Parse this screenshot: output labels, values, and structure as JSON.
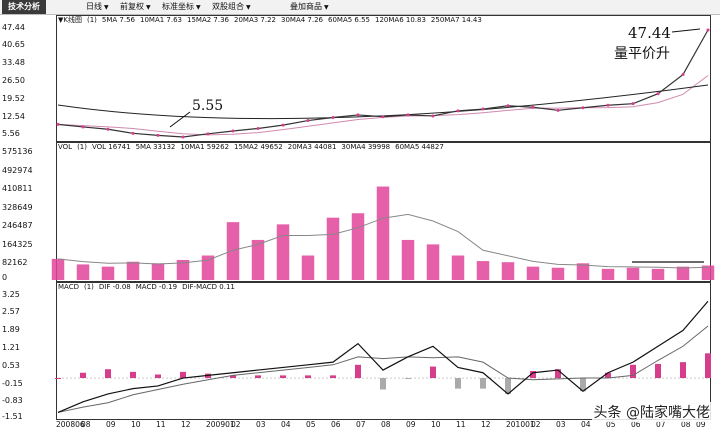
{
  "toolbar": {
    "title": "技术分析",
    "menus": [
      "日线",
      "前复权",
      "标准坐标",
      "双股组合",
      "叠加商品"
    ]
  },
  "price_panel": {
    "legend": [
      "▼K线图",
      "(1)",
      "5MA 7.56",
      "10MA1 7.63",
      "15MA2 7.36",
      "20MA3 7.22",
      "30MA4 7.26",
      "60MA5 6.55",
      "120MA6 10.83",
      "250MA7 14.43"
    ],
    "y_ticks": [
      "47.44",
      "40.65",
      "33.48",
      "26.50",
      "19.52",
      "12.54",
      "5.56"
    ],
    "annotation_low": "5.55",
    "annotation_high": "47.44",
    "annotation_text": "量平价升"
  },
  "volume_panel": {
    "legend": [
      "VOL",
      "(1)",
      "VOL 16741",
      "5MA 33132",
      "10MA1 59262",
      "15MA2 49652",
      "20MA3 44081",
      "30MA4 39998",
      "60MA5 44827"
    ],
    "y_ticks": [
      "575136",
      "492974",
      "410811",
      "328649",
      "246487",
      "164325",
      "82162",
      "0"
    ]
  },
  "macd_panel": {
    "legend": [
      "MACD",
      "(1)",
      "DIF -0.08",
      "MACD -0.19",
      "DIF-MACD 0.11"
    ],
    "y_ticks": [
      "3.25",
      "2.57",
      "1.89",
      "1.21",
      "0.53",
      "-0.15",
      "-0.83",
      "-1.51"
    ]
  },
  "x_dates": [
    "200806",
    "08",
    "09",
    "10",
    "11",
    "12",
    "200901",
    "02",
    "03",
    "04",
    "05",
    "06",
    "07",
    "08",
    "09",
    "10",
    "11",
    "12",
    "201001",
    "02",
    "03",
    "04",
    "05",
    "06",
    "07",
    "08",
    "09"
  ],
  "watermark": "头条 @陆家嘴大佬",
  "colors": {
    "price_line": "#333333",
    "volume_bar": "#e0449a",
    "ma": "#d08ab0",
    "dif": "#111111",
    "dea": "#666666",
    "hist_pos": "#d63d8a",
    "hist_neg": "#aaaaaa"
  },
  "chart_data": {
    "type": "line",
    "x": [
      "200806",
      "08",
      "09",
      "10",
      "11",
      "12",
      "200901",
      "02",
      "03",
      "04",
      "05",
      "06",
      "07",
      "08",
      "09",
      "10",
      "11",
      "12",
      "201001",
      "02",
      "03",
      "04",
      "05",
      "06",
      "07",
      "08",
      "09"
    ],
    "series": [
      {
        "name": "K线",
        "values": [
          10.5,
          9.5,
          8.6,
          7.0,
          6.2,
          5.55,
          6.8,
          7.9,
          8.9,
          10.2,
          12.0,
          13.2,
          14.2,
          13.5,
          14.2,
          13.8,
          15.8,
          16.5,
          17.8,
          17.2,
          16.0,
          17.0,
          18.0,
          18.6,
          22.5,
          30.0,
          47.44
        ]
      },
      {
        "name": "VOL",
        "values": [
          95000,
          70000,
          60000,
          82000,
          75000,
          90000,
          110000,
          260000,
          180000,
          250000,
          110000,
          280000,
          300000,
          420000,
          180000,
          160000,
          110000,
          85000,
          80000,
          60000,
          55000,
          75000,
          50000,
          55000,
          50000,
          60000,
          65000
        ]
      },
      {
        "name": "DIF",
        "values": [
          -1.3,
          -0.9,
          -0.6,
          -0.4,
          -0.3,
          0.0,
          0.1,
          0.2,
          0.3,
          0.4,
          0.5,
          0.6,
          1.3,
          0.3,
          0.8,
          1.2,
          0.4,
          0.2,
          -0.6,
          0.2,
          0.3,
          -0.5,
          0.2,
          0.6,
          1.2,
          1.8,
          2.9
        ]
      }
    ],
    "ylim_price": [
      5.56,
      47.44
    ],
    "ylim_volume": [
      0,
      575136
    ],
    "ylim_macd": [
      -1.51,
      3.25
    ],
    "xlabel": "",
    "ylabel": "",
    "grid": false
  }
}
